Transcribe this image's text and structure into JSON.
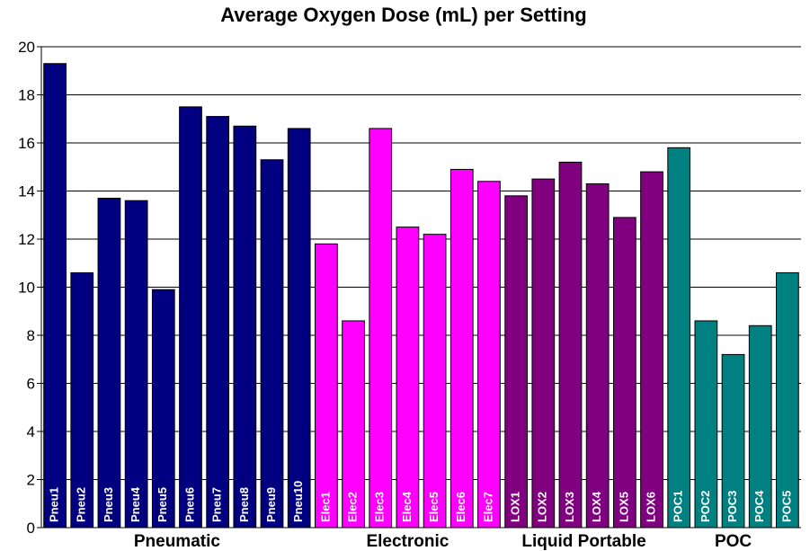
{
  "chart_data": {
    "type": "bar",
    "title": "Average Oxygen Dose (mL) per Setting",
    "xlabel": "",
    "ylabel": "",
    "ylim": [
      0,
      20
    ],
    "yticks": [
      0,
      2,
      4,
      6,
      8,
      10,
      12,
      14,
      16,
      18,
      20
    ],
    "grid": true,
    "categories": [
      "Pneu1",
      "Pneu2",
      "Pneu3",
      "Pneu4",
      "Pneu5",
      "Pneu6",
      "Pneu7",
      "Pneu8",
      "Pneu9",
      "Pneu10",
      "Elec1",
      "Elec2",
      "Elec3",
      "Elec4",
      "Elec5",
      "Elec6",
      "Elec7",
      "LOX1",
      "LOX2",
      "LOX3",
      "LOX4",
      "LOX5",
      "LOX6",
      "POC1",
      "POC2",
      "POC3",
      "POC4",
      "POC5"
    ],
    "values": [
      19.3,
      10.6,
      13.7,
      13.6,
      9.9,
      17.5,
      17.1,
      16.7,
      15.3,
      16.6,
      11.8,
      8.6,
      16.6,
      12.5,
      12.2,
      14.9,
      14.4,
      13.8,
      14.5,
      15.2,
      14.3,
      12.9,
      14.8,
      15.8,
      8.6,
      7.2,
      8.4,
      10.6
    ],
    "groups": [
      {
        "name": "Pneumatic",
        "start": 0,
        "count": 10,
        "color": "#000080"
      },
      {
        "name": "Electronic",
        "start": 10,
        "count": 7,
        "color": "#FF00FF"
      },
      {
        "name": "Liquid Portable",
        "start": 17,
        "count": 6,
        "color": "#800080"
      },
      {
        "name": "POC",
        "start": 23,
        "count": 5,
        "color": "#008080"
      }
    ]
  }
}
